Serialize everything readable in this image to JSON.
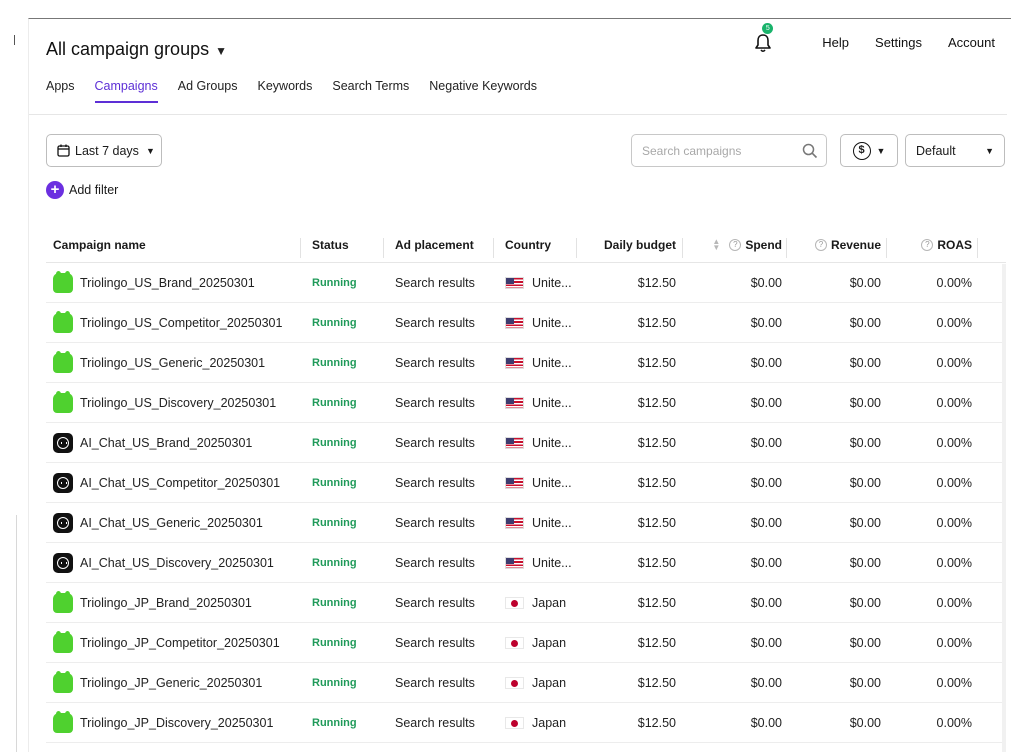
{
  "header": {
    "title": "All campaign groups",
    "notification_count": "5",
    "nav": [
      "Help",
      "Settings",
      "Account"
    ]
  },
  "tabs": [
    {
      "label": "Apps",
      "active": false
    },
    {
      "label": "Campaigns",
      "active": true
    },
    {
      "label": "Ad Groups",
      "active": false
    },
    {
      "label": "Keywords",
      "active": false
    },
    {
      "label": "Search Terms",
      "active": false
    },
    {
      "label": "Negative Keywords",
      "active": false
    }
  ],
  "toolbar": {
    "date_range": "Last 7 days",
    "search_placeholder": "Search campaigns",
    "currency_symbol": "$",
    "view": "Default",
    "add_filter": "Add filter"
  },
  "table": {
    "columns": [
      "Campaign name",
      "Status",
      "Ad placement",
      "Country",
      "Daily budget",
      "Spend",
      "Revenue",
      "ROAS"
    ],
    "rows": [
      {
        "app": "trio",
        "name": "Triolingo_US_Brand_20250301",
        "status": "Running",
        "placement": "Search results",
        "flag": "us",
        "country": "Unite...",
        "budget": "$12.50",
        "spend": "$0.00",
        "revenue": "$0.00",
        "roas": "0.00%"
      },
      {
        "app": "trio",
        "name": "Triolingo_US_Competitor_20250301",
        "status": "Running",
        "placement": "Search results",
        "flag": "us",
        "country": "Unite...",
        "budget": "$12.50",
        "spend": "$0.00",
        "revenue": "$0.00",
        "roas": "0.00%"
      },
      {
        "app": "trio",
        "name": "Triolingo_US_Generic_20250301",
        "status": "Running",
        "placement": "Search results",
        "flag": "us",
        "country": "Unite...",
        "budget": "$12.50",
        "spend": "$0.00",
        "revenue": "$0.00",
        "roas": "0.00%"
      },
      {
        "app": "trio",
        "name": "Triolingo_US_Discovery_20250301",
        "status": "Running",
        "placement": "Search results",
        "flag": "us",
        "country": "Unite...",
        "budget": "$12.50",
        "spend": "$0.00",
        "revenue": "$0.00",
        "roas": "0.00%"
      },
      {
        "app": "ai",
        "name": "AI_Chat_US_Brand_20250301",
        "status": "Running",
        "placement": "Search results",
        "flag": "us",
        "country": "Unite...",
        "budget": "$12.50",
        "spend": "$0.00",
        "revenue": "$0.00",
        "roas": "0.00%"
      },
      {
        "app": "ai",
        "name": "AI_Chat_US_Competitor_20250301",
        "status": "Running",
        "placement": "Search results",
        "flag": "us",
        "country": "Unite...",
        "budget": "$12.50",
        "spend": "$0.00",
        "revenue": "$0.00",
        "roas": "0.00%"
      },
      {
        "app": "ai",
        "name": "AI_Chat_US_Generic_20250301",
        "status": "Running",
        "placement": "Search results",
        "flag": "us",
        "country": "Unite...",
        "budget": "$12.50",
        "spend": "$0.00",
        "revenue": "$0.00",
        "roas": "0.00%"
      },
      {
        "app": "ai",
        "name": "AI_Chat_US_Discovery_20250301",
        "status": "Running",
        "placement": "Search results",
        "flag": "us",
        "country": "Unite...",
        "budget": "$12.50",
        "spend": "$0.00",
        "revenue": "$0.00",
        "roas": "0.00%"
      },
      {
        "app": "trio",
        "name": "Triolingo_JP_Brand_20250301",
        "status": "Running",
        "placement": "Search results",
        "flag": "jp",
        "country": "Japan",
        "budget": "$12.50",
        "spend": "$0.00",
        "revenue": "$0.00",
        "roas": "0.00%"
      },
      {
        "app": "trio",
        "name": "Triolingo_JP_Competitor_20250301",
        "status": "Running",
        "placement": "Search results",
        "flag": "jp",
        "country": "Japan",
        "budget": "$12.50",
        "spend": "$0.00",
        "revenue": "$0.00",
        "roas": "0.00%"
      },
      {
        "app": "trio",
        "name": "Triolingo_JP_Generic_20250301",
        "status": "Running",
        "placement": "Search results",
        "flag": "jp",
        "country": "Japan",
        "budget": "$12.50",
        "spend": "$0.00",
        "revenue": "$0.00",
        "roas": "0.00%"
      },
      {
        "app": "trio",
        "name": "Triolingo_JP_Discovery_20250301",
        "status": "Running",
        "placement": "Search results",
        "flag": "jp",
        "country": "Japan",
        "budget": "$12.50",
        "spend": "$0.00",
        "revenue": "$0.00",
        "roas": "0.00%"
      }
    ]
  },
  "colors": {
    "accent": "#5d2fd6",
    "running": "#1f9a59",
    "badge": "#19b36b",
    "trio_icon": "#4fd12f",
    "ai_icon": "#111111"
  }
}
